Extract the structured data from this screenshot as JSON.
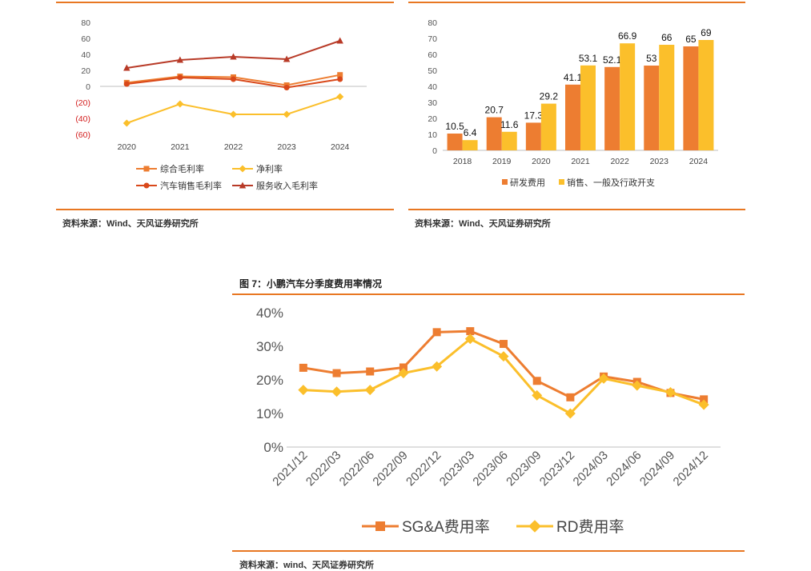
{
  "colors": {
    "orange": "#ed7d31",
    "dark_orange": "#e8741f",
    "gold": "#fbbf2b",
    "red": "#d9481a",
    "brown_red": "#b83a27",
    "rule": "#e87722"
  },
  "left_panel": {
    "source": "资料来源：Wind、天风证券研究所"
  },
  "right_panel": {
    "source": "资料来源：Wind、天风证券研究所"
  },
  "bottom_panel": {
    "title": "图 7：小鹏汽车分季度费用率情况",
    "source": "资料来源：wind、天风证券研究所"
  },
  "chart_data": [
    {
      "type": "line",
      "categories": [
        "2020",
        "2021",
        "2022",
        "2023",
        "2024"
      ],
      "yticks": [
        "80",
        "60",
        "40",
        "20",
        "0",
        "(20)",
        "(40)",
        "(60)"
      ],
      "ylim": [
        -60,
        80
      ],
      "series": [
        {
          "name": "综合毛利率",
          "values": [
            4.6,
            12.5,
            11.5,
            1.5,
            14.3
          ],
          "color": "#ed7d31",
          "marker": "square"
        },
        {
          "name": "净利率",
          "values": [
            -46,
            -22,
            -35,
            -35,
            -13
          ],
          "color": "#fbbf2b",
          "marker": "diamond"
        },
        {
          "name": "汽车销售毛利率",
          "values": [
            3.0,
            11.0,
            9.0,
            -1.5,
            9.0
          ],
          "color": "#d9481a",
          "marker": "circle"
        },
        {
          "name": "服务收入毛利率",
          "values": [
            23,
            33,
            37,
            34,
            57
          ],
          "color": "#b83a27",
          "marker": "triangle"
        }
      ],
      "legend": "bottom"
    },
    {
      "type": "bar",
      "categories": [
        "2018",
        "2019",
        "2020",
        "2021",
        "2022",
        "2023",
        "2024"
      ],
      "yticks": [
        "80",
        "70",
        "60",
        "50",
        "40",
        "30",
        "20",
        "10",
        "0"
      ],
      "ylim": [
        0,
        80
      ],
      "series": [
        {
          "name": "研发费用",
          "values": [
            10.5,
            20.7,
            17.3,
            41.1,
            52.1,
            53,
            65
          ],
          "labels": [
            "10.5",
            "20.7",
            "17.3",
            "41.1",
            "52.1",
            "53",
            "65"
          ],
          "color": "#ed7d31"
        },
        {
          "name": "销售、一般及行政开支",
          "values": [
            6.4,
            11.6,
            29.2,
            53.1,
            66.9,
            66,
            69
          ],
          "labels": [
            "6.4",
            "11.6",
            "29.2",
            "53.1",
            "66.9",
            "66",
            "69"
          ],
          "color": "#fbbf2b"
        }
      ],
      "legend": "bottom"
    },
    {
      "type": "line",
      "categories": [
        "2021/12",
        "2022/03",
        "2022/06",
        "2022/09",
        "2022/12",
        "2023/03",
        "2023/06",
        "2023/09",
        "2023/12",
        "2024/03",
        "2024/06",
        "2024/09",
        "2024/12"
      ],
      "yticks": [
        "40%",
        "30%",
        "20%",
        "10%",
        "0%"
      ],
      "ylim": [
        0,
        0.4
      ],
      "series": [
        {
          "name": "SG&A费用率",
          "values": [
            0.236,
            0.22,
            0.225,
            0.237,
            0.342,
            0.345,
            0.307,
            0.197,
            0.148,
            0.21,
            0.194,
            0.161,
            0.142
          ],
          "color": "#ed7d31",
          "marker": "square"
        },
        {
          "name": "RD费用率",
          "values": [
            0.17,
            0.165,
            0.17,
            0.22,
            0.24,
            0.322,
            0.27,
            0.154,
            0.1,
            0.204,
            0.183,
            0.163,
            0.126
          ],
          "color": "#fbbf2b",
          "marker": "diamond"
        }
      ],
      "legend": "bottom"
    }
  ]
}
